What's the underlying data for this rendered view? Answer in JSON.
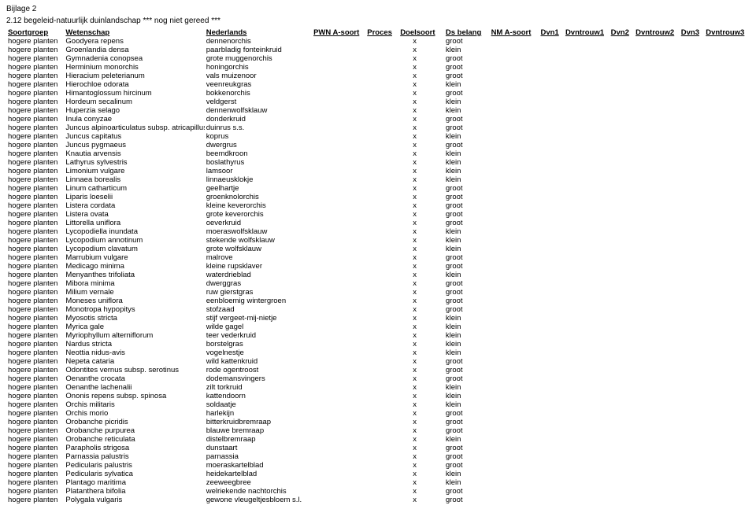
{
  "header": {
    "bijlage": "Bijlage 2",
    "subtitle": "2.12 begeleid-natuurlijk duinlandschap   *** nog niet gereed ***"
  },
  "columns": [
    "Soortgroep",
    "Wetenschap",
    "Nederlands",
    "PWN A-soort",
    "Proces",
    "Doelsoort",
    "Ds belang",
    "NM A-soort",
    "Dvn1",
    "Dvntrouw1",
    "Dvn2",
    "Dvntrouw2",
    "Dvn3",
    "Dvntrouw3"
  ],
  "soortgroep_label": "hogere planten",
  "rows": [
    {
      "wet": "Goodyera repens",
      "nl": "dennenorchis",
      "ds": "x",
      "belang": "groot"
    },
    {
      "wet": "Groenlandia densa",
      "nl": "paarbladig fonteinkruid",
      "ds": "x",
      "belang": "klein"
    },
    {
      "wet": "Gymnadenia conopsea",
      "nl": "grote muggenorchis",
      "ds": "x",
      "belang": "groot"
    },
    {
      "wet": "Herminium monorchis",
      "nl": "honingorchis",
      "ds": "x",
      "belang": "groot"
    },
    {
      "wet": "Hieracium peleterianum",
      "nl": "vals muizenoor",
      "ds": "x",
      "belang": "groot"
    },
    {
      "wet": "Hierochloe odorata",
      "nl": "veenreukgras",
      "ds": "x",
      "belang": "klein"
    },
    {
      "wet": "Himantoglossum hircinum",
      "nl": "bokkenorchis",
      "ds": "x",
      "belang": "groot"
    },
    {
      "wet": "Hordeum secalinum",
      "nl": "veldgerst",
      "ds": "x",
      "belang": "klein"
    },
    {
      "wet": "Huperzia selago",
      "nl": "dennenwolfsklauw",
      "ds": "x",
      "belang": "klein"
    },
    {
      "wet": "Inula conyzae",
      "nl": "donderkruid",
      "ds": "x",
      "belang": "groot"
    },
    {
      "wet": "Juncus alpinoarticulatus subsp. atricapillus",
      "nl": "duinrus s.s.",
      "ds": "x",
      "belang": "groot"
    },
    {
      "wet": "Juncus capitatus",
      "nl": "koprus",
      "ds": "x",
      "belang": "klein"
    },
    {
      "wet": "Juncus pygmaeus",
      "nl": "dwergrus",
      "ds": "x",
      "belang": "groot"
    },
    {
      "wet": "Knautia arvensis",
      "nl": "beemdkroon",
      "ds": "x",
      "belang": "klein"
    },
    {
      "wet": "Lathyrus sylvestris",
      "nl": "boslathyrus",
      "ds": "x",
      "belang": "klein"
    },
    {
      "wet": "Limonium vulgare",
      "nl": "lamsoor",
      "ds": "x",
      "belang": "klein"
    },
    {
      "wet": "Linnaea borealis",
      "nl": "linnaeusklokje",
      "ds": "x",
      "belang": "klein"
    },
    {
      "wet": "Linum catharticum",
      "nl": "geelhartje",
      "ds": "x",
      "belang": "groot"
    },
    {
      "wet": "Liparis loeselii",
      "nl": "groenknolorchis",
      "ds": "x",
      "belang": "groot"
    },
    {
      "wet": "Listera cordata",
      "nl": "kleine keverorchis",
      "ds": "x",
      "belang": "groot"
    },
    {
      "wet": "Listera ovata",
      "nl": "grote keverorchis",
      "ds": "x",
      "belang": "groot"
    },
    {
      "wet": "Littorella uniflora",
      "nl": "oeverkruid",
      "ds": "x",
      "belang": "groot"
    },
    {
      "wet": "Lycopodiella inundata",
      "nl": "moeraswolfsklauw",
      "ds": "x",
      "belang": "klein"
    },
    {
      "wet": "Lycopodium annotinum",
      "nl": "stekende wolfsklauw",
      "ds": "x",
      "belang": "klein"
    },
    {
      "wet": "Lycopodium clavatum",
      "nl": "grote wolfsklauw",
      "ds": "x",
      "belang": "klein"
    },
    {
      "wet": "Marrubium vulgare",
      "nl": "malrove",
      "ds": "x",
      "belang": "groot"
    },
    {
      "wet": "Medicago minima",
      "nl": "kleine rupsklaver",
      "ds": "x",
      "belang": "groot"
    },
    {
      "wet": "Menyanthes trifoliata",
      "nl": "waterdrieblad",
      "ds": "x",
      "belang": "klein"
    },
    {
      "wet": "Mibora minima",
      "nl": "dwerggras",
      "ds": "x",
      "belang": "groot"
    },
    {
      "wet": "Milium vernale",
      "nl": "ruw gierstgras",
      "ds": "x",
      "belang": "groot"
    },
    {
      "wet": "Moneses uniflora",
      "nl": "eenbloemig wintergroen",
      "ds": "x",
      "belang": "groot"
    },
    {
      "wet": "Monotropa hypopitys",
      "nl": "stofzaad",
      "ds": "x",
      "belang": "groot"
    },
    {
      "wet": "Myosotis stricta",
      "nl": "stijf vergeet-mij-nietje",
      "ds": "x",
      "belang": "klein"
    },
    {
      "wet": "Myrica gale",
      "nl": "wilde gagel",
      "ds": "x",
      "belang": "klein"
    },
    {
      "wet": "Myriophyllum alterniflorum",
      "nl": "teer vederkruid",
      "ds": "x",
      "belang": "klein"
    },
    {
      "wet": "Nardus stricta",
      "nl": "borstelgras",
      "ds": "x",
      "belang": "klein"
    },
    {
      "wet": "Neottia nidus-avis",
      "nl": "vogelnestje",
      "ds": "x",
      "belang": "klein"
    },
    {
      "wet": "Nepeta cataria",
      "nl": "wild kattenkruid",
      "ds": "x",
      "belang": "groot"
    },
    {
      "wet": "Odontites vernus subsp. serotinus",
      "nl": "rode ogentroost",
      "ds": "x",
      "belang": "groot"
    },
    {
      "wet": "Oenanthe crocata",
      "nl": "dodemansvingers",
      "ds": "x",
      "belang": "groot"
    },
    {
      "wet": "Oenanthe lachenalii",
      "nl": "zilt torkruid",
      "ds": "x",
      "belang": "klein"
    },
    {
      "wet": "Ononis repens subsp. spinosa",
      "nl": "kattendoorn",
      "ds": "x",
      "belang": "klein"
    },
    {
      "wet": "Orchis militaris",
      "nl": "soldaatje",
      "ds": "x",
      "belang": "klein"
    },
    {
      "wet": "Orchis morio",
      "nl": "harlekijn",
      "ds": "x",
      "belang": "groot"
    },
    {
      "wet": "Orobanche picridis",
      "nl": "bitterkruidbremraap",
      "ds": "x",
      "belang": "groot"
    },
    {
      "wet": "Orobanche purpurea",
      "nl": "blauwe bremraap",
      "ds": "x",
      "belang": "groot"
    },
    {
      "wet": "Orobanche reticulata",
      "nl": "distelbremraap",
      "ds": "x",
      "belang": "klein"
    },
    {
      "wet": "Parapholis strigosa",
      "nl": "dunstaart",
      "ds": "x",
      "belang": "groot"
    },
    {
      "wet": "Parnassia palustris",
      "nl": "parnassia",
      "ds": "x",
      "belang": "groot"
    },
    {
      "wet": "Pedicularis palustris",
      "nl": "moeraskartelblad",
      "ds": "x",
      "belang": "groot"
    },
    {
      "wet": "Pedicularis sylvatica",
      "nl": "heidekartelblad",
      "ds": "x",
      "belang": "klein"
    },
    {
      "wet": "Plantago maritima",
      "nl": "zeeweegbree",
      "ds": "x",
      "belang": "klein"
    },
    {
      "wet": "Platanthera bifolia",
      "nl": "welriekende nachtorchis",
      "ds": "x",
      "belang": "groot"
    },
    {
      "wet": "Polygala vulgaris",
      "nl": "gewone vleugeltjesbloem s.l.",
      "ds": "x",
      "belang": "groot"
    }
  ]
}
